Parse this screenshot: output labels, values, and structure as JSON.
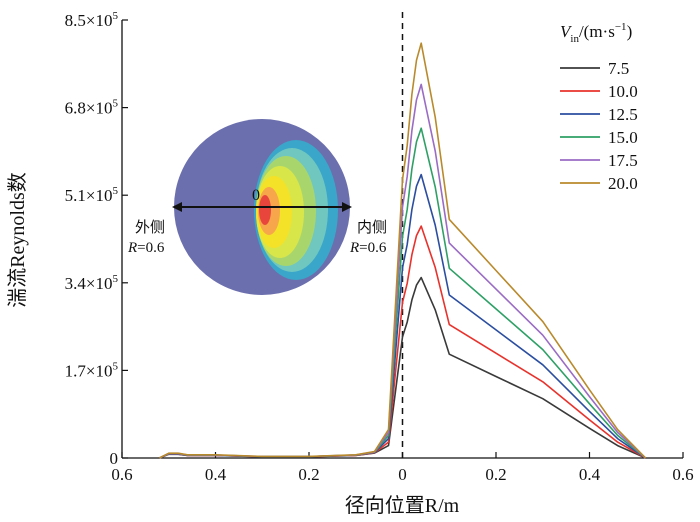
{
  "chart_data": {
    "type": "line",
    "title": "",
    "xlabel": "径向位置R/m",
    "ylabel": "湍流Reynolds数",
    "xlim": [
      -0.6,
      0.6
    ],
    "ylim": [
      0,
      850000
    ],
    "x_tick_values": [
      -0.6,
      -0.4,
      -0.2,
      0,
      0.2,
      0.4,
      0.6
    ],
    "x_tick_labels": [
      "0.6",
      "0.4",
      "0.2",
      "0",
      "0.2",
      "0.4",
      "0.6"
    ],
    "y_tick_values": [
      0,
      170000,
      340000,
      510000,
      680000,
      850000
    ],
    "y_tick_labels": [
      {
        "mantissa": "0",
        "exp": ""
      },
      {
        "mantissa": "1.7×10",
        "exp": "5"
      },
      {
        "mantissa": "3.4×10",
        "exp": "5"
      },
      {
        "mantissa": "5.1×10",
        "exp": "5"
      },
      {
        "mantissa": "6.8×10",
        "exp": "5"
      },
      {
        "mantissa": "8.5×10",
        "exp": "5"
      }
    ],
    "legend_title": {
      "v": "V",
      "sub": "in",
      "unit_a": "/(m·s",
      "sup": "−1",
      "unit_b": ")"
    },
    "legend_position": "top-right",
    "grid": false,
    "reference_line": {
      "x": 0,
      "style": "dashed"
    },
    "x": [
      -0.52,
      -0.5,
      -0.48,
      -0.46,
      -0.4,
      -0.3,
      -0.2,
      -0.1,
      -0.06,
      -0.03,
      0,
      0.01,
      0.02,
      0.03,
      0.04,
      0.07,
      0.1,
      0.2,
      0.3,
      0.4,
      0.46,
      0.52
    ],
    "base_profile": [
      0.0,
      0.0205,
      0.0205,
      0.0136,
      0.0136,
      0.0068,
      0.0068,
      0.0137,
      0.0273,
      0.0685,
      0.6712,
      0.7534,
      0.8767,
      0.9589,
      1.0,
      0.8219,
      0.5753,
      0.452,
      0.3288,
      0.1644,
      0.0685,
      0.0
    ],
    "series": [
      {
        "name": "7.5",
        "color": "#3a3a3a",
        "peak": 350000
      },
      {
        "name": "10.0",
        "color": "#e8322c",
        "peak": 450000
      },
      {
        "name": "12.5",
        "color": "#2b4ea0",
        "peak": 550000
      },
      {
        "name": "15.0",
        "color": "#2ea066",
        "peak": 640000
      },
      {
        "name": "17.5",
        "color": "#9a6cc4",
        "peak": 725000
      },
      {
        "name": "20.0",
        "color": "#b98a2c",
        "peak": 805000
      }
    ],
    "inset": {
      "center_label": "0",
      "left_label": "外侧",
      "left_radius": {
        "r": "R",
        "val": "=0.6"
      },
      "right_label": "内侧",
      "right_radius": {
        "r": "R",
        "val": "=0.6"
      },
      "disk_color": "#6b6fad",
      "contour_colors": [
        "#3aa6c9",
        "#6fc7c0",
        "#a9d66c",
        "#d9e64a",
        "#f3e227",
        "#f7a64b",
        "#e8463d"
      ]
    }
  }
}
